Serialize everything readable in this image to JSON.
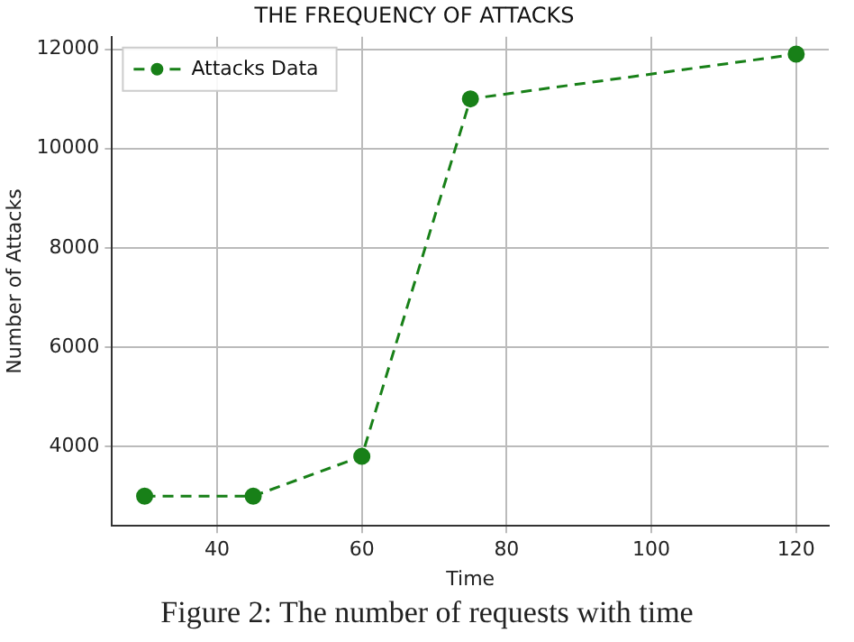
{
  "chart_data": {
    "type": "line",
    "title": "THE FREQUENCY OF ATTACKS",
    "xlabel": "Time",
    "ylabel": "Number of Attacks",
    "x": [
      30,
      45,
      60,
      75,
      120
    ],
    "series": [
      {
        "name": "Attacks Data",
        "color": "#188018",
        "values": [
          3000,
          3000,
          3800,
          11000,
          11900
        ]
      }
    ],
    "xlim": [
      25.5,
      124.5
    ],
    "xticks": [
      40,
      60,
      80,
      100,
      120
    ],
    "ylim": [
      2400,
      12250
    ],
    "yticks": [
      4000,
      6000,
      8000,
      10000,
      12000
    ],
    "grid": true,
    "legend": "top left",
    "marker": "circle",
    "line_style": "dashed",
    "annotations": [
      "Figure 2: The number of requests with time"
    ]
  }
}
